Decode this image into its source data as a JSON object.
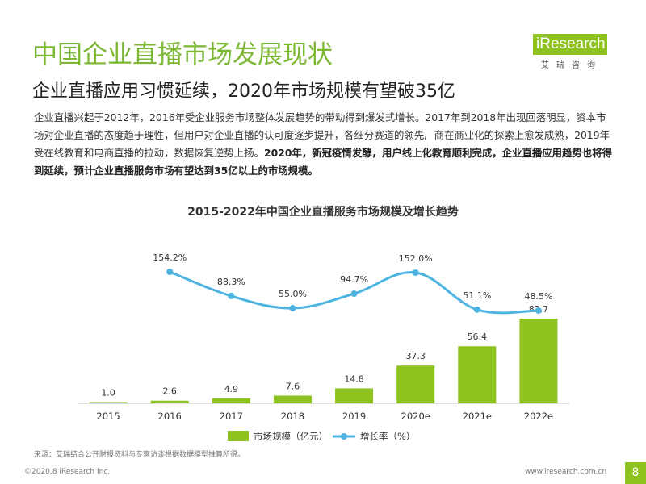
{
  "header": {
    "title": "中国企业直播市场发展现状",
    "subtitle": "企业直播应用习惯延续，2020年市场规模有望破35亿"
  },
  "logo": {
    "text": "iResearch",
    "sub": "艾瑞咨询",
    "color": "#8dc21f"
  },
  "intro": {
    "normal": "企业直播兴起于2012年，2016年受企业服务市场整体发展趋势的带动得到爆发式增长。2017年到2018年出现回落明显，资本市场对企业直播的态度趋于理性，但用户对企业直播的认可度逐步提升，各细分赛道的领先厂商在商业化的探索上愈发成熟，2019年受在线教育和电商直播的拉动，数据恢复逆势上扬。",
    "bold": "2020年，新冠疫情发酵，用户线上化教育顺利完成，企业直播应用趋势也将得到延续，预计企业直播服务市场有望达到35亿以上的市场规模。"
  },
  "chart_data": {
    "type": "bar",
    "title": "2015-2022年中国企业直播服务市场规模及增长趋势",
    "categories": [
      "2015",
      "2016",
      "2017",
      "2018",
      "2019",
      "2020e",
      "2021e",
      "2022e"
    ],
    "series": [
      {
        "name": "市场规模（亿元）",
        "type": "bar",
        "values": [
          1.0,
          2.6,
          4.9,
          7.6,
          14.8,
          37.3,
          56.4,
          83.7
        ],
        "labels": [
          "1.0",
          "2.6",
          "4.9",
          "7.6",
          "14.8",
          "37.3",
          "56.4",
          "83.7"
        ],
        "color": "#8dc21f"
      },
      {
        "name": "增长率（%）",
        "type": "line",
        "values": [
          null,
          154.2,
          88.3,
          55.0,
          94.7,
          152.0,
          51.1,
          48.5
        ],
        "labels": [
          "",
          "154.2%",
          "88.3%",
          "55.0%",
          "94.7%",
          "152.0%",
          "51.1%",
          "48.5%"
        ],
        "color": "#4db3e0"
      }
    ],
    "legend_position": "bottom",
    "grid": false
  },
  "footer": {
    "source": "来源：艾瑞结合公开财报资料与专家访谈根据数据模型推算所得。",
    "copyright": "©2020.8 iResearch Inc.",
    "website": "www.iresearch.com.cn",
    "page": "8"
  }
}
